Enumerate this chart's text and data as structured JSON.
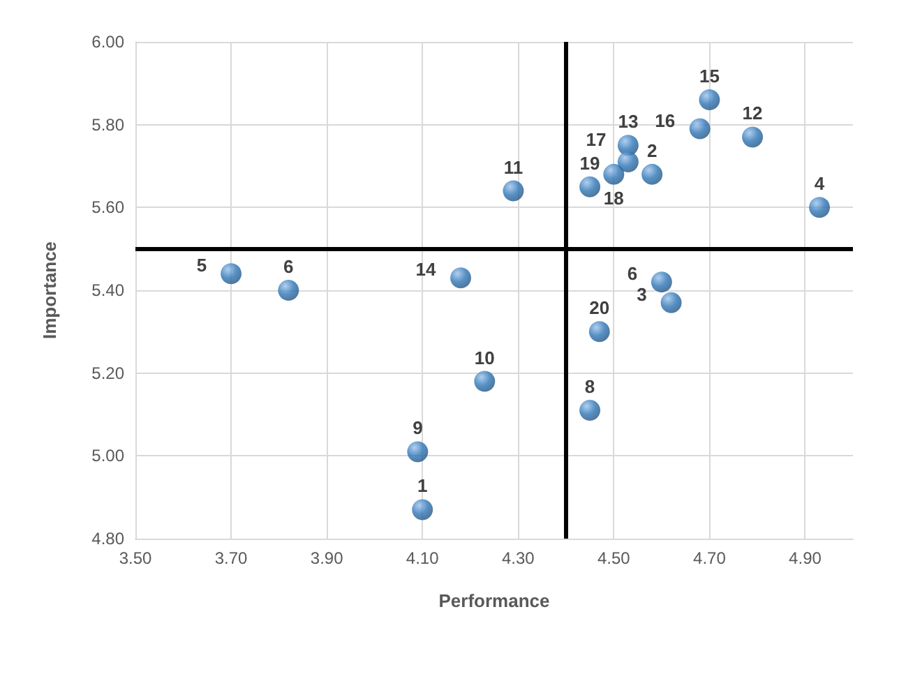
{
  "chart_data": {
    "type": "scatter",
    "xlabel": "Performance",
    "ylabel": "Importance",
    "x": [
      4.1,
      4.58,
      4.62,
      4.93,
      3.7,
      3.82,
      4.6,
      4.45,
      4.09,
      4.23,
      4.29,
      4.79,
      4.53,
      4.18,
      4.7,
      4.68,
      4.53,
      4.5,
      4.45,
      4.47
    ],
    "series": [
      {
        "color": "#2e75b6",
        "values": [
          4.87,
          5.68,
          5.37,
          5.6,
          5.44,
          5.4,
          5.42,
          5.11,
          5.01,
          5.18,
          5.64,
          5.77,
          5.75,
          5.43,
          5.86,
          5.79,
          5.71,
          5.68,
          5.65,
          5.3
        ]
      }
    ],
    "annotations": [
      {
        "text": "1",
        "x": 4.1,
        "y": 4.87
      },
      {
        "text": "2",
        "x": 4.58,
        "y": 5.68
      },
      {
        "text": "3",
        "x": 4.62,
        "y": 5.37
      },
      {
        "text": "4",
        "x": 4.93,
        "y": 5.6
      },
      {
        "text": "5",
        "x": 3.7,
        "y": 5.44
      },
      {
        "text": "6",
        "x": 3.82,
        "y": 5.4
      },
      {
        "text": "6",
        "x": 4.6,
        "y": 5.42
      },
      {
        "text": "8",
        "x": 4.45,
        "y": 5.11
      },
      {
        "text": "9",
        "x": 4.09,
        "y": 5.01
      },
      {
        "text": "10",
        "x": 4.23,
        "y": 5.18
      },
      {
        "text": "11",
        "x": 4.29,
        "y": 5.64
      },
      {
        "text": "12",
        "x": 4.79,
        "y": 5.77
      },
      {
        "text": "13",
        "x": 4.53,
        "y": 5.75
      },
      {
        "text": "14",
        "x": 4.18,
        "y": 5.43
      },
      {
        "text": "15",
        "x": 4.7,
        "y": 5.86
      },
      {
        "text": "16",
        "x": 4.68,
        "y": 5.79
      },
      {
        "text": "17",
        "x": 4.53,
        "y": 5.71
      },
      {
        "text": "18",
        "x": 4.5,
        "y": 5.68
      },
      {
        "text": "19",
        "x": 4.45,
        "y": 5.65
      },
      {
        "text": "20",
        "x": 4.47,
        "y": 5.3
      }
    ],
    "xlim": [
      3.5,
      5.0
    ],
    "ylim": [
      4.8,
      6.0
    ],
    "xticks": [
      {
        "value": 3.5,
        "label": "3.50"
      },
      {
        "value": 3.7,
        "label": "3.70"
      },
      {
        "value": 3.9,
        "label": "3.90"
      },
      {
        "value": 4.1,
        "label": "4.10"
      },
      {
        "value": 4.3,
        "label": "4.30"
      },
      {
        "value": 4.5,
        "label": "4.50"
      },
      {
        "value": 4.7,
        "label": "4.70"
      },
      {
        "value": 4.9,
        "label": "4.90"
      }
    ],
    "yticks": [
      {
        "value": 4.8,
        "label": "4.80"
      },
      {
        "value": 5.0,
        "label": "5.00"
      },
      {
        "value": 5.2,
        "label": "5.20"
      },
      {
        "value": 5.4,
        "label": "5.40"
      },
      {
        "value": 5.6,
        "label": "5.60"
      },
      {
        "value": 5.8,
        "label": "5.80"
      },
      {
        "value": 6.0,
        "label": "6.00"
      }
    ],
    "ref_lines": [
      {
        "axis": "x",
        "value": 4.4,
        "color": "#000000"
      },
      {
        "axis": "y",
        "value": 5.5,
        "color": "#000000"
      }
    ],
    "grid": true,
    "marker": "circle"
  }
}
